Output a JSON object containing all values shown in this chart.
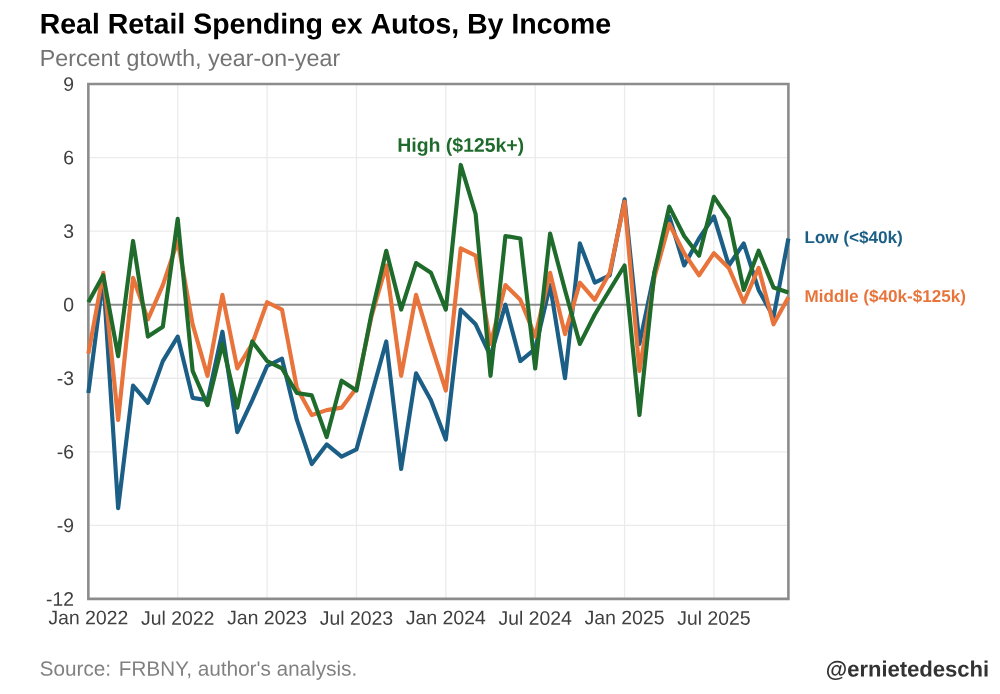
{
  "chart_data": {
    "type": "line",
    "title": "Real Retail Spending ex Autos, By Income",
    "subtitle": "Percent gtowth, year-on-year",
    "x": [
      "2022-01",
      "2022-02",
      "2022-03",
      "2022-04",
      "2022-05",
      "2022-06",
      "2022-07",
      "2022-08",
      "2022-09",
      "2022-10",
      "2022-11",
      "2022-12",
      "2023-01",
      "2023-02",
      "2023-03",
      "2023-04",
      "2023-05",
      "2023-06",
      "2023-07",
      "2023-08",
      "2023-09",
      "2023-10",
      "2023-11",
      "2023-12",
      "2024-01",
      "2024-02",
      "2024-03",
      "2024-04",
      "2024-05",
      "2024-06",
      "2024-07",
      "2024-08",
      "2024-09",
      "2024-10",
      "2024-11",
      "2024-12",
      "2025-01",
      "2025-02",
      "2025-03",
      "2025-04",
      "2025-05",
      "2025-06",
      "2025-07",
      "2025-08",
      "2025-09",
      "2025-10",
      "2025-11",
      "2025-12"
    ],
    "series": [
      {
        "name": "Low (<$40k)",
        "color": "#1b5e86",
        "values": [
          -3.6,
          1.1,
          -8.3,
          -3.3,
          -4.0,
          -2.3,
          -1.3,
          -3.8,
          -3.9,
          -1.1,
          -5.2,
          -3.9,
          -2.5,
          -2.2,
          -4.7,
          -6.5,
          -5.7,
          -6.2,
          -5.9,
          -3.7,
          -1.5,
          -6.7,
          -2.8,
          -3.9,
          -5.5,
          -0.2,
          -0.8,
          -2.1,
          0.0,
          -2.3,
          -1.8,
          0.8,
          -3.0,
          2.5,
          0.9,
          1.2,
          4.3,
          -1.6,
          1.3,
          3.6,
          1.6,
          2.7,
          3.6,
          1.6,
          2.5,
          0.6,
          -0.5,
          2.7
        ]
      },
      {
        "name": "Middle ($40k-$125k)",
        "color": "#e8743b",
        "values": [
          -2.0,
          1.3,
          -4.7,
          1.1,
          -0.6,
          0.8,
          2.6,
          -0.8,
          -2.9,
          0.4,
          -2.6,
          -1.6,
          0.1,
          -0.2,
          -3.4,
          -4.5,
          -4.3,
          -4.2,
          -3.4,
          -0.5,
          1.6,
          -2.9,
          0.4,
          -1.6,
          -3.5,
          2.3,
          2.0,
          -1.6,
          0.8,
          0.2,
          -1.3,
          1.3,
          -1.2,
          0.9,
          0.2,
          1.3,
          4.2,
          -2.7,
          1.1,
          3.3,
          2.1,
          1.2,
          2.1,
          1.5,
          0.1,
          1.5,
          -0.8,
          0.3
        ]
      },
      {
        "name": "High ($125k+)",
        "color": "#1e6b2c",
        "values": [
          0.1,
          1.2,
          -2.1,
          2.6,
          -1.3,
          -0.9,
          3.5,
          -2.7,
          -4.1,
          -1.6,
          -4.2,
          -1.5,
          -2.3,
          -2.6,
          -3.6,
          -3.7,
          -5.4,
          -3.1,
          -3.5,
          -0.4,
          2.2,
          -0.2,
          1.7,
          1.3,
          -0.2,
          5.7,
          3.7,
          -2.9,
          2.8,
          2.7,
          -2.6,
          2.9,
          0.6,
          -1.6,
          -0.4,
          0.6,
          1.6,
          -4.5,
          1.3,
          4.0,
          2.8,
          2.0,
          4.4,
          3.5,
          0.6,
          2.2,
          0.7,
          0.5
        ]
      }
    ],
    "xlim": [
      "2022-01",
      "2025-12"
    ],
    "xticks": [
      {
        "value": "2022-01",
        "label": "Jan 2022"
      },
      {
        "value": "2022-07",
        "label": "Jul 2022"
      },
      {
        "value": "2023-01",
        "label": "Jan 2023"
      },
      {
        "value": "2023-07",
        "label": "Jul 2023"
      },
      {
        "value": "2024-01",
        "label": "Jan 2024"
      },
      {
        "value": "2024-07",
        "label": "Jul 2024"
      },
      {
        "value": "2025-01",
        "label": "Jan 2025"
      },
      {
        "value": "2025-07",
        "label": "Jul 2025"
      }
    ],
    "ylim": [
      -12,
      9
    ],
    "yticks": [
      -12,
      -9,
      -6,
      -3,
      0,
      3,
      6,
      9
    ],
    "grid": true,
    "line_style": "solid",
    "ref_lines": [
      {
        "axis": "y",
        "value": 0,
        "color": "#8c8c8c"
      }
    ],
    "annotations": [
      "Source: FRBNY, author's analysis.",
      "@ernietedeschi"
    ]
  }
}
